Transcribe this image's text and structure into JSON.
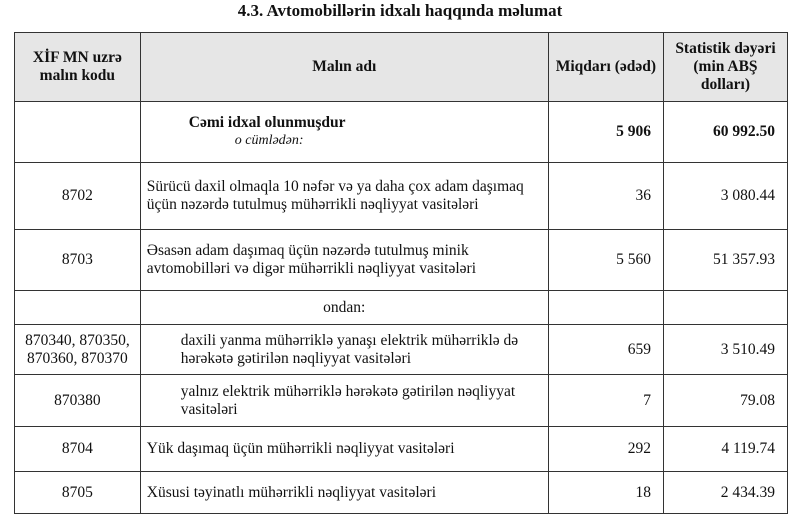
{
  "title": "4.3.   Avtomobillərin idxalı haqqında məlumat",
  "headers": {
    "code": "XİF MN uzrə malın kodu",
    "name": "Malın adı",
    "qty": "Miqdarı (ədəd)",
    "value": "Statistik dəyəri (min ABŞ dolları)"
  },
  "total": {
    "name": "Cəmi idxal olunmuşdur",
    "sub": "o cümlədən:",
    "qty": "5 906",
    "value": "60 992.50"
  },
  "rows": [
    {
      "code": "8702",
      "name": "Sürücü daxil olmaqla 10 nəfər və ya daha çox adam daşımaq üçün nəzərdə tutulmuş mühərrikli nəqliyyat vasitələri",
      "qty": "36",
      "value": "3 080.44"
    },
    {
      "code": "8703",
      "name": "Əsasən adam daşımaq üçün nəzərdə tutulmuş minik avtomobilləri və digər mühərrikli nəqliyyat vasitələri",
      "qty": "5 560",
      "value": "51 357.93"
    }
  ],
  "ondan": "ondan:",
  "subrows": [
    {
      "code": "870340, 870350, 870360, 870370",
      "name": "daxili yanma mühərriklə yanaşı elektrik mühərriklə də hərəkətə gətirilən nəqliyyat vasitələri",
      "qty": "659",
      "value": "3 510.49"
    },
    {
      "code": "870380",
      "name": "yalnız elektrik mühərriklə hərəkətə gətirilən nəqliyyat vasitələri",
      "qty": "7",
      "value": "79.08"
    }
  ],
  "rows2": [
    {
      "code": "8704",
      "name": "Yük daşımaq üçün mühərrikli nəqliyyat vasitələri",
      "qty": "292",
      "value": "4 119.74"
    },
    {
      "code": "8705",
      "name": "Xüsusi təyinatlı mühərrikli nəqliyyat vasitələri",
      "qty": "18",
      "value": "2 434.39"
    }
  ]
}
